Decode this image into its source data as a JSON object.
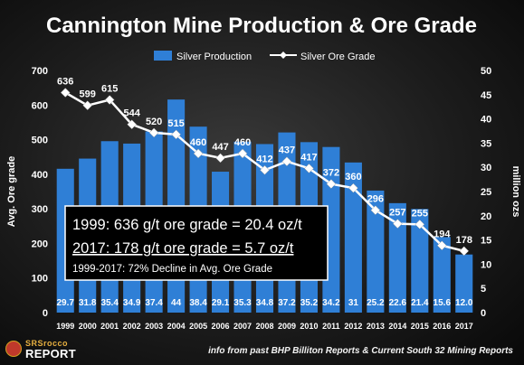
{
  "chart_data": {
    "type": "bar+line",
    "title": "Cannington Mine Production & Ore Grade",
    "categories": [
      "1999",
      "2000",
      "2001",
      "2002",
      "2003",
      "2004",
      "2005",
      "2006",
      "2007",
      "2008",
      "2009",
      "2010",
      "2011",
      "2012",
      "2013",
      "2014",
      "2015",
      "2016",
      "2017"
    ],
    "series": [
      {
        "name": "Silver Production",
        "type": "bar",
        "axis": "right",
        "values": [
          29.7,
          31.8,
          35.4,
          34.9,
          37.4,
          44,
          38.4,
          29.1,
          35.3,
          34.8,
          37.2,
          35.2,
          34.2,
          31,
          25.2,
          22.6,
          21.4,
          15.6,
          12.0
        ],
        "labels": [
          "29.7",
          "31.8",
          "35.4",
          "34.9",
          "37.4",
          "44",
          "38.4",
          "29.1",
          "35.3",
          "34.8",
          "37.2",
          "35.2",
          "34.2",
          "31",
          "25.2",
          "22.6",
          "21.4",
          "15.6",
          "12.0"
        ],
        "color": "#2f7fd6"
      },
      {
        "name": "Silver Ore Grade",
        "type": "line",
        "axis": "left",
        "values": [
          636,
          599,
          615,
          544,
          520,
          515,
          460,
          447,
          460,
          412,
          437,
          417,
          372,
          360,
          296,
          257,
          255,
          194,
          178
        ],
        "color": "#ffffff"
      }
    ],
    "ylabel_left": "Avg. Ore grade",
    "ylim_left": [
      0,
      700
    ],
    "yticks_left": [
      "0",
      "100",
      "200",
      "300",
      "400",
      "500",
      "600",
      "700"
    ],
    "ylabel_right": "million ozs",
    "ylim_right": [
      0,
      50
    ],
    "yticks_right": [
      "0",
      "5",
      "10",
      "15",
      "20",
      "25",
      "30",
      "35",
      "40",
      "45",
      "50"
    ],
    "legend_position": "top",
    "grid": false,
    "annotation": {
      "line1": "1999:  636 g/t ore grade = 20.4 oz/t",
      "line2": "2017:  178 g/t ore grade =  5.7 oz/t",
      "line3": "1999-2017: 72% Decline in Avg. Ore Grade"
    }
  },
  "footer": {
    "logo_top": "SRSrocco",
    "logo_bottom": "REPORT",
    "source": "info from past BHP Billiton Reports & Current South 32 Mining Reports"
  }
}
